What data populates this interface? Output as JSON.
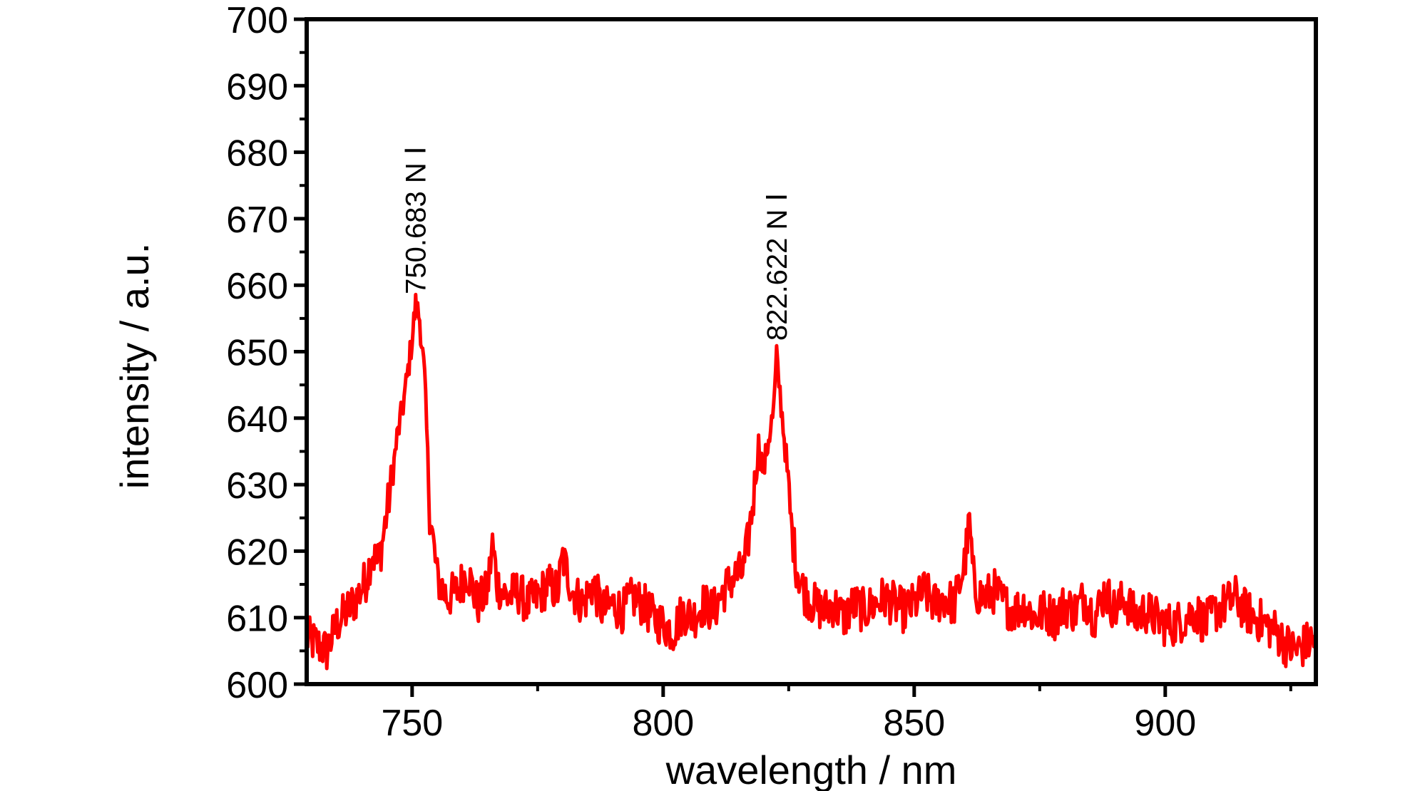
{
  "chart_data": {
    "type": "line",
    "title": "",
    "xlabel": "wavelength / nm",
    "ylabel": "intensity / a.u.",
    "xlim": [
      729,
      930
    ],
    "ylim": [
      600,
      700
    ],
    "xticks": [
      750,
      800,
      850,
      900
    ],
    "yticks": [
      600,
      610,
      620,
      630,
      640,
      650,
      660,
      670,
      680,
      690,
      700
    ],
    "grid": false,
    "legend": "none",
    "series": [
      {
        "color": "#ff0000",
        "x": [
          729,
          731,
          733,
          735,
          737,
          739,
          741,
          742,
          743,
          744,
          745,
          746,
          747,
          748,
          749,
          750,
          750.7,
          751.5,
          752.5,
          753.5,
          755,
          757,
          759,
          761,
          763,
          765,
          766,
          767,
          769,
          771,
          773,
          775,
          777,
          779,
          780,
          782,
          784,
          786,
          788,
          790,
          792,
          794,
          796,
          798,
          800,
          802,
          804,
          806,
          808,
          810,
          812,
          814,
          816,
          817,
          818,
          819,
          820,
          821,
          822,
          822.6,
          823.5,
          824.5,
          825.5,
          826.5,
          828,
          830,
          832,
          834,
          836,
          838,
          840,
          842,
          844,
          846,
          848,
          850,
          852,
          854,
          856,
          858,
          860,
          861,
          862,
          864,
          866,
          868,
          870,
          872,
          874,
          876,
          878,
          880,
          882,
          884,
          886,
          888,
          890,
          892,
          894,
          896,
          898,
          900,
          902,
          904,
          906,
          908,
          910,
          912,
          914,
          916,
          918,
          920,
          922,
          924,
          926,
          928,
          930
        ],
        "y": [
          607,
          606,
          605,
          609,
          611,
          613,
          616,
          620,
          618,
          621,
          626,
          631,
          637,
          641,
          646,
          652,
          657,
          655,
          646,
          626,
          616,
          613,
          614,
          617,
          612,
          614,
          621,
          615,
          613,
          614,
          612,
          613,
          615,
          614,
          619,
          614,
          612,
          615,
          611,
          612,
          611,
          613,
          612,
          610,
          609,
          608,
          611,
          610,
          612,
          611,
          614,
          616,
          617,
          622,
          628,
          636,
          632,
          637,
          641,
          649,
          642,
          634,
          624,
          618,
          614,
          612,
          611,
          612,
          610,
          612,
          611,
          612,
          613,
          612,
          611,
          612,
          614,
          612,
          613,
          612,
          618,
          624,
          614,
          613,
          614,
          612,
          611,
          612,
          610,
          611,
          610,
          612,
          611,
          613,
          610,
          614,
          611,
          613,
          610,
          611,
          610,
          609,
          609,
          610,
          611,
          609,
          611,
          612,
          613,
          611,
          610,
          609,
          608,
          606,
          605,
          606,
          607
        ]
      }
    ],
    "annotations": [
      {
        "text": "750.683 N Ⅰ",
        "x": 750.683,
        "y": 658
      },
      {
        "text": "822.622 N Ⅰ",
        "x": 822.622,
        "y": 651
      }
    ]
  }
}
